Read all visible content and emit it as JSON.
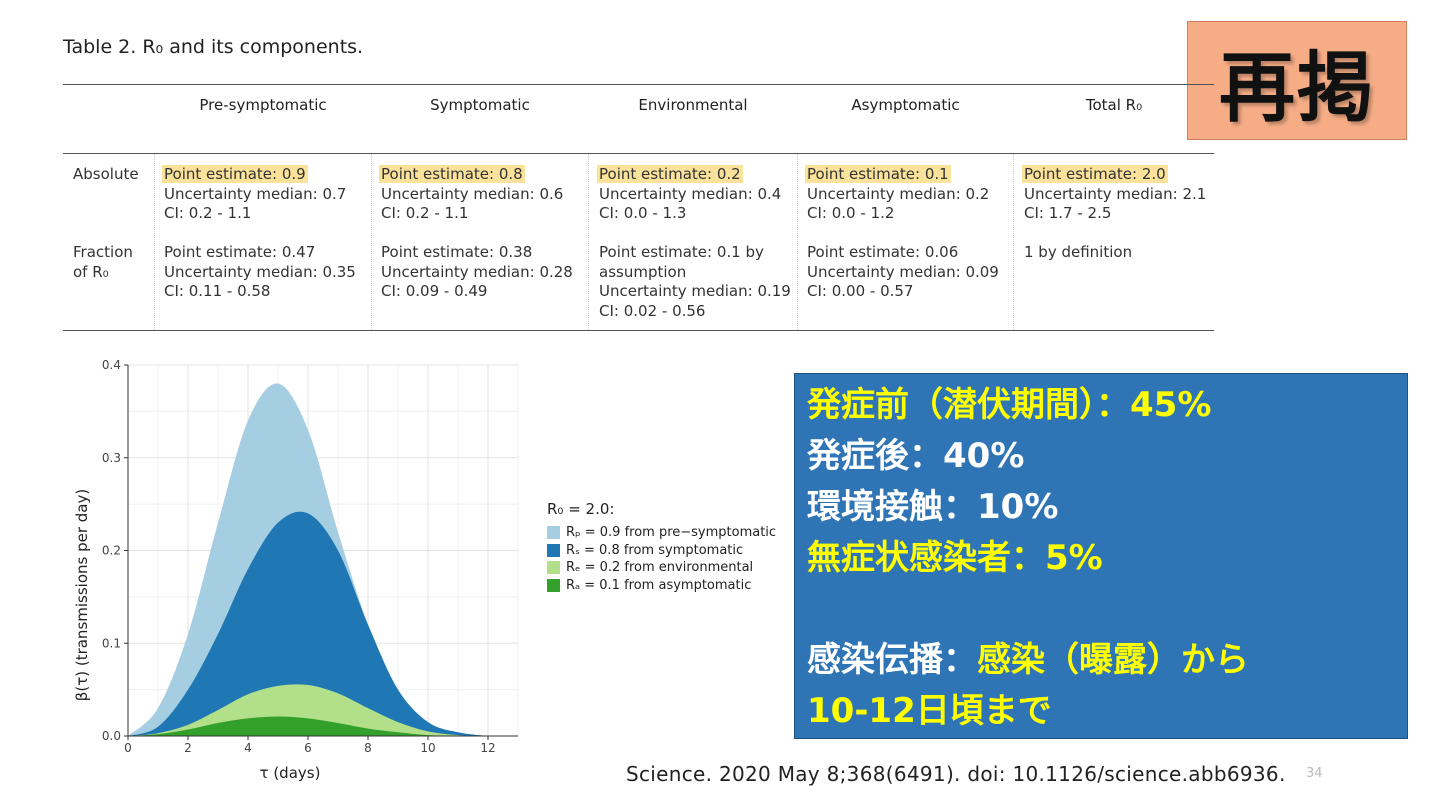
{
  "table": {
    "caption": "Table 2. R₀ and its components.",
    "columns": [
      "Pre-symptomatic",
      "Symptomatic",
      "Environmental",
      "Asymptomatic",
      "Total R₀"
    ],
    "rows": [
      {
        "label": "Absolute",
        "cells": [
          [
            "Point estimate: 0.9",
            "Uncertainty median: 0.7",
            "CI: 0.2 - 1.1"
          ],
          [
            "Point estimate: 0.8",
            "Uncertainty median: 0.6",
            "CI: 0.2 - 1.1"
          ],
          [
            "Point estimate: 0.2",
            "Uncertainty median: 0.4",
            "CI: 0.0 - 1.3"
          ],
          [
            "Point estimate: 0.1",
            "Uncertainty median: 0.2",
            "CI: 0.0 - 1.2"
          ],
          [
            "Point estimate: 2.0",
            "Uncertainty median: 2.1",
            "CI: 1.7 - 2.5"
          ]
        ]
      },
      {
        "label_line1": "Fraction",
        "label_line2": "of R₀",
        "cells": [
          [
            "Point estimate: 0.47",
            "Uncertainty median: 0.35",
            "CI: 0.11 - 0.58"
          ],
          [
            "Point estimate: 0.38",
            "Uncertainty median: 0.28",
            "CI: 0.09 - 0.49"
          ],
          [
            "Point estimate: 0.1 by",
            "assumption",
            "Uncertainty median: 0.19",
            "CI: 0.02 - 0.56"
          ],
          [
            "Point estimate: 0.06",
            "Uncertainty median: 0.09",
            "CI: 0.00 - 0.57"
          ],
          [
            "1 by definition"
          ]
        ]
      }
    ]
  },
  "badge": "再掲",
  "panel": {
    "l1": "発症前（潜伏期間）：45%",
    "l2": "発症後：40%",
    "l3": "環境接触：10%",
    "l4": "無症状感染者：5%",
    "l5a": "感染伝播：",
    "l5b": "感染（曝露）から",
    "l6": "10-12日頃まで"
  },
  "citation": "Science. 2020 May 8;368(6491). doi: 10.1126/science.abb6936.",
  "page_number": "34",
  "chart_data": {
    "type": "area",
    "xlabel": "τ (days)",
    "ylabel": "β(τ)  (transmissions per day)",
    "xlim": [
      0,
      13
    ],
    "ylim": [
      0,
      0.4
    ],
    "x_ticks": [
      0,
      2,
      4,
      6,
      8,
      10,
      12
    ],
    "y_ticks": [
      0.0,
      0.1,
      0.2,
      0.3,
      0.4
    ],
    "grid": true,
    "legend_title": "R₀ = 2.0:",
    "legend_position": "right",
    "x": [
      0,
      1,
      2,
      3,
      4,
      5,
      6,
      7,
      8,
      9,
      10,
      11,
      12
    ],
    "series": [
      {
        "name": "Rₚ = 0.9 from pre−symptomatic",
        "color": "#a6cee3",
        "values": [
          0,
          0.03,
          0.11,
          0.23,
          0.34,
          0.38,
          0.33,
          0.22,
          0.12,
          0.05,
          0.015,
          0.004,
          0
        ]
      },
      {
        "name": "Rₛ = 0.8 from symptomatic",
        "color": "#1f78b4",
        "values": [
          0,
          0.01,
          0.05,
          0.11,
          0.18,
          0.23,
          0.24,
          0.2,
          0.12,
          0.05,
          0.015,
          0.004,
          0
        ]
      },
      {
        "name": "Rₑ = 0.2 from environmental",
        "color": "#b2df8a",
        "values": [
          0,
          0.003,
          0.012,
          0.028,
          0.045,
          0.054,
          0.055,
          0.046,
          0.03,
          0.015,
          0.005,
          0.001,
          0
        ]
      },
      {
        "name": "Rₐ = 0.1 from asymptomatic",
        "color": "#33a02c",
        "values": [
          0,
          0.002,
          0.007,
          0.014,
          0.019,
          0.021,
          0.019,
          0.014,
          0.008,
          0.004,
          0.001,
          0,
          0
        ]
      }
    ]
  }
}
